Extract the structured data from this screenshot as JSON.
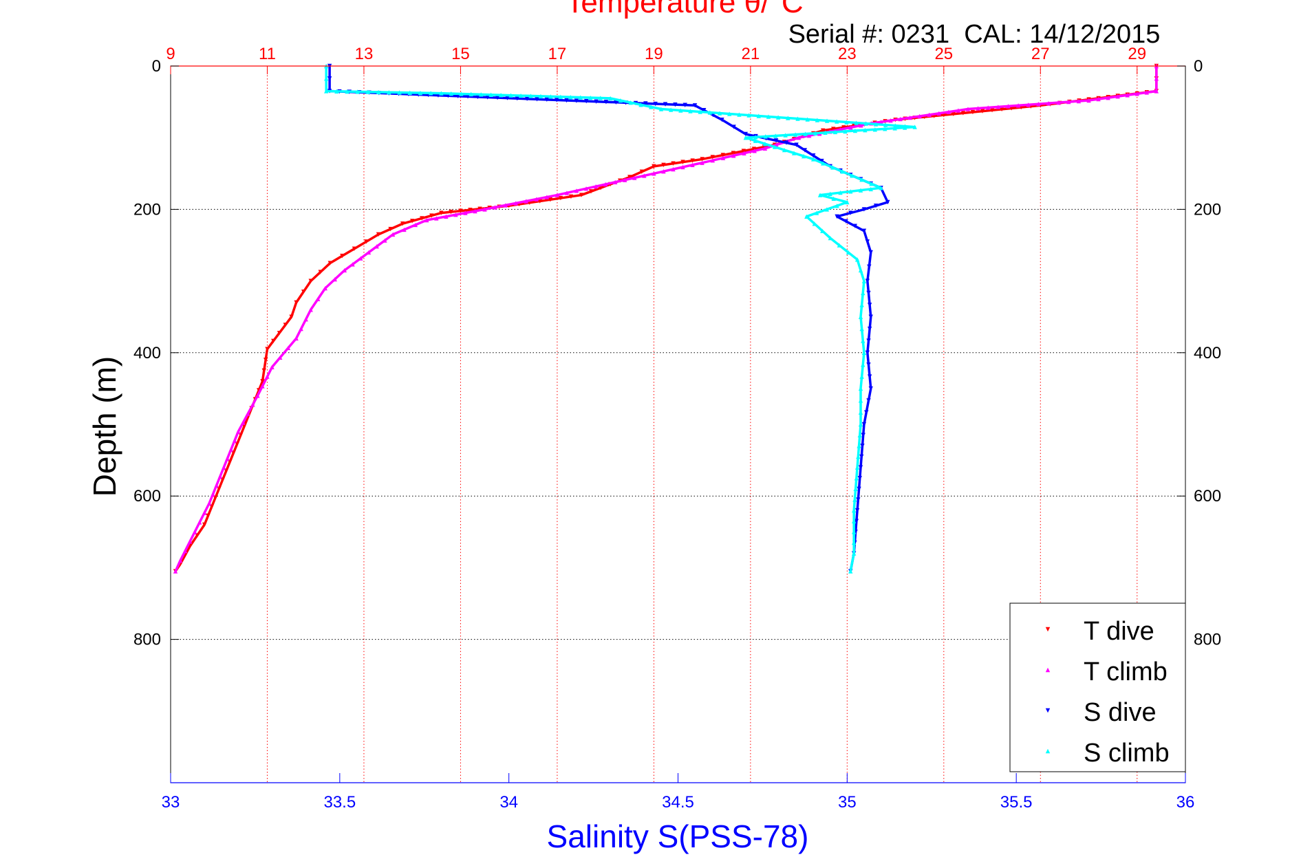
{
  "chart_data": {
    "type": "scatter",
    "title": "Temperature θ/°C",
    "subtitle": "Serial #: 0231  CAL: 14/12/2015",
    "xlabel": "Salinity S(PSS-78)",
    "ylabel": "Depth (m)",
    "x_axis_bottom": {
      "label": "Salinity S(PSS-78)",
      "range": [
        33,
        36
      ],
      "ticks": [
        "33",
        "33.5",
        "34",
        "34.5",
        "35",
        "35.5",
        "36"
      ],
      "tick_values": [
        33,
        33.5,
        34,
        34.5,
        35,
        35.5,
        36
      ],
      "color": "#0000ff"
    },
    "x_axis_top": {
      "label": "Temperature θ/°C",
      "range": [
        9,
        30
      ],
      "ticks": [
        "9",
        "11",
        "13",
        "15",
        "17",
        "19",
        "21",
        "23",
        "25",
        "27",
        "29"
      ],
      "tick_values": [
        9,
        11,
        13,
        15,
        17,
        19,
        21,
        23,
        25,
        27,
        29
      ],
      "color": "#ff0000"
    },
    "y_axis": {
      "label": "Depth (m)",
      "range": [
        0,
        1000
      ],
      "reversed": true,
      "ticks": [
        "0",
        "200",
        "400",
        "600",
        "800"
      ],
      "tick_values": [
        0,
        200,
        400,
        600,
        800
      ],
      "right_ticks": [
        "0",
        "200",
        "400",
        "600",
        "800"
      ]
    },
    "grid": true,
    "legend": {
      "placement": "bottom-right",
      "entries": [
        {
          "label": "T dive",
          "color": "#ff0000",
          "marker": "triangle-down"
        },
        {
          "label": "T climb",
          "color": "#ff00ff",
          "marker": "triangle-up"
        },
        {
          "label": "S dive",
          "color": "#0000ff",
          "marker": "triangle-down"
        },
        {
          "label": "S climb",
          "color": "#00ffff",
          "marker": "triangle-up"
        }
      ]
    },
    "series": [
      {
        "name": "T dive",
        "axis": "temperature",
        "color": "#ff0000",
        "marker": "triangle-down",
        "x": [
          29.4,
          29.4,
          27.0,
          24.0,
          22.5,
          21.5,
          20.0,
          19.0,
          18.5,
          17.5,
          16.0,
          14.6,
          13.8,
          13.3,
          12.8,
          12.3,
          11.9,
          11.6,
          11.5,
          11.0,
          10.9,
          10.6,
          10.3,
          10.0,
          9.7,
          9.4,
          9.2,
          9.1
        ],
        "y": [
          0,
          35,
          55,
          75,
          90,
          110,
          130,
          140,
          155,
          180,
          195,
          205,
          220,
          235,
          255,
          275,
          300,
          330,
          350,
          395,
          440,
          490,
          540,
          590,
          640,
          670,
          695,
          705
        ]
      },
      {
        "name": "T climb",
        "axis": "temperature",
        "color": "#ff00ff",
        "marker": "triangle-up",
        "x": [
          29.4,
          29.4,
          28.0,
          25.5,
          23.5,
          22.0,
          21.3,
          20.0,
          19.0,
          18.0,
          17.0,
          15.5,
          14.3,
          13.6,
          13.1,
          12.6,
          12.2,
          11.9,
          11.6,
          11.1,
          10.8,
          10.4,
          10.1,
          9.8,
          9.5,
          9.2,
          9.1
        ],
        "y": [
          0,
          35,
          48,
          60,
          80,
          100,
          115,
          135,
          150,
          165,
          180,
          200,
          215,
          235,
          260,
          285,
          310,
          340,
          380,
          420,
          460,
          510,
          560,
          610,
          650,
          690,
          705
        ]
      },
      {
        "name": "S dive",
        "axis": "salinity",
        "color": "#0000ff",
        "marker": "triangle-down",
        "x": [
          33.47,
          33.47,
          34.55,
          34.63,
          34.7,
          34.85,
          34.95,
          35.1,
          35.12,
          35.05,
          34.97,
          35.05,
          35.07,
          35.06,
          35.07,
          35.06,
          35.07,
          35.05,
          35.04,
          35.03,
          35.02,
          35.01
        ],
        "y": [
          0,
          35,
          55,
          75,
          95,
          110,
          140,
          170,
          190,
          200,
          210,
          230,
          260,
          300,
          350,
          400,
          450,
          500,
          560,
          620,
          680,
          705
        ]
      },
      {
        "name": "S climb",
        "axis": "salinity",
        "color": "#00ffff",
        "marker": "triangle-up",
        "x": [
          33.46,
          33.46,
          33.8,
          34.3,
          34.45,
          35.2,
          34.7,
          34.9,
          35.1,
          34.92,
          35.0,
          34.88,
          34.95,
          35.03,
          35.05,
          35.04,
          35.05,
          35.04,
          35.04,
          35.03,
          35.02,
          35.02,
          35.01
        ],
        "y": [
          0,
          35,
          38,
          45,
          60,
          85,
          100,
          130,
          170,
          180,
          190,
          210,
          240,
          270,
          300,
          350,
          400,
          450,
          500,
          560,
          620,
          680,
          705
        ]
      }
    ]
  }
}
